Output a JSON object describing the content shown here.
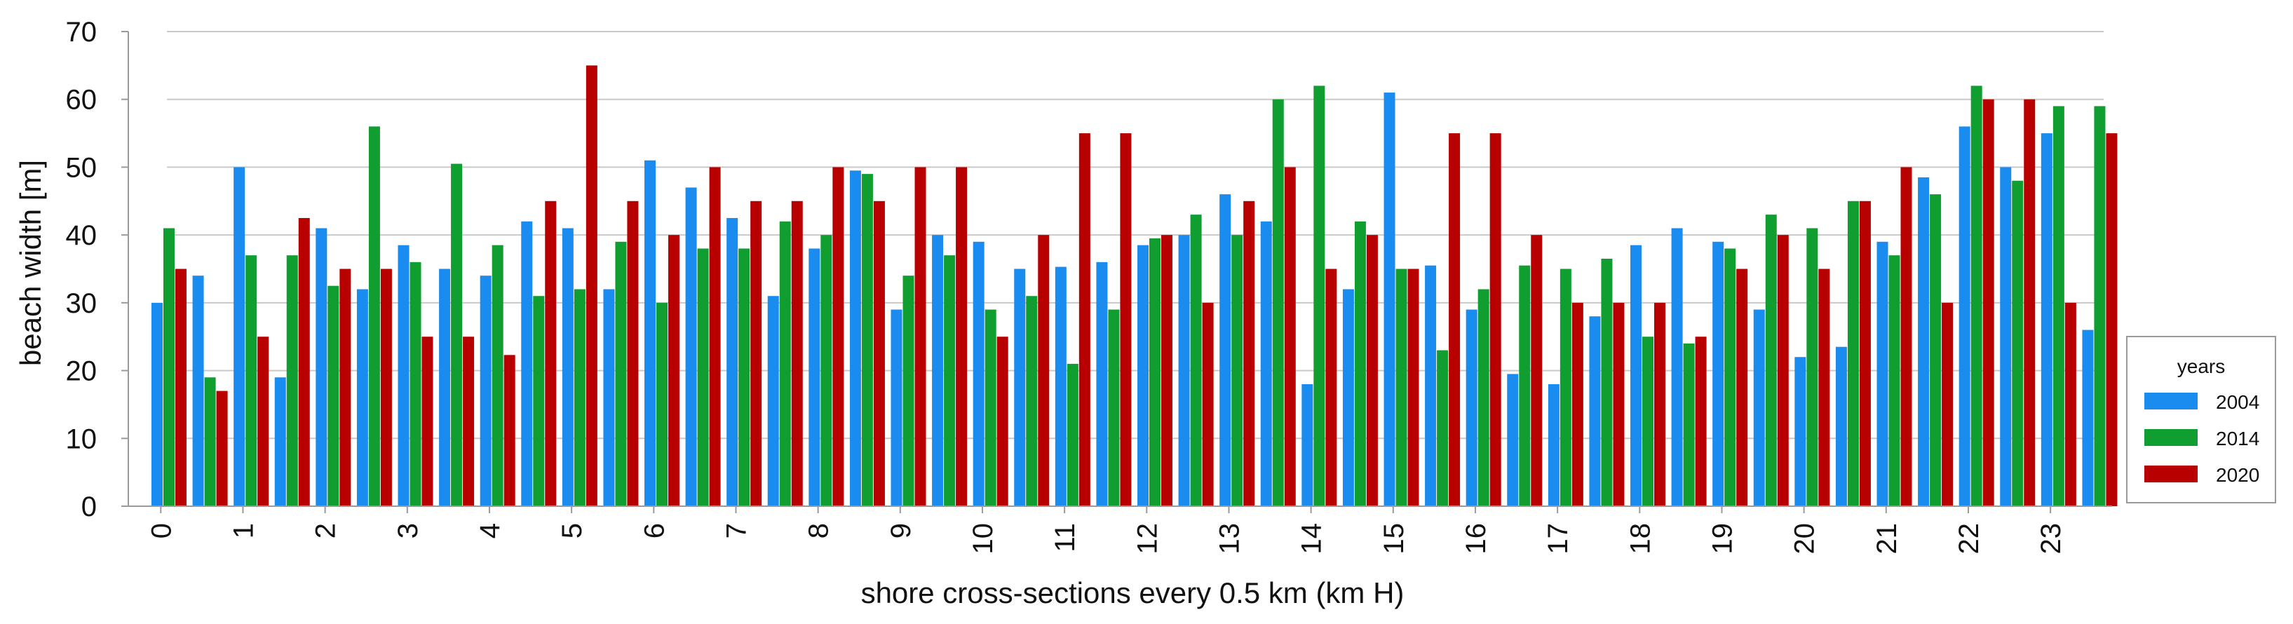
{
  "chart_data": {
    "type": "bar",
    "title": "",
    "xlabel": "shore cross-sections every 0.5 km (km H)",
    "ylabel": "beach width [m]",
    "ylim": [
      0,
      70
    ],
    "yticks": [
      0,
      10,
      20,
      30,
      40,
      50,
      60,
      70
    ],
    "grid": true,
    "legend": {
      "title": "years",
      "position": "right-bottom"
    },
    "xtick_labels": [
      "0",
      "1",
      "2",
      "3",
      "4",
      "5",
      "6",
      "7",
      "8",
      "9",
      "10",
      "11",
      "12",
      "13",
      "14",
      "15",
      "16",
      "17",
      "18",
      "19",
      "20",
      "21",
      "22",
      "23"
    ],
    "categories": [
      "0",
      "0.5",
      "1",
      "1.5",
      "2",
      "2.5",
      "3",
      "3.5",
      "4",
      "4.5",
      "5",
      "5.5",
      "6",
      "6.5",
      "7",
      "7.5",
      "8",
      "8.5",
      "9",
      "9.5",
      "10",
      "10.5",
      "11",
      "11.5",
      "12",
      "12.5",
      "13",
      "13.5",
      "14",
      "14.5",
      "15",
      "15.5",
      "16",
      "16.5",
      "17",
      "17.5",
      "18",
      "18.5",
      "19",
      "19.5",
      "20",
      "20.5",
      "21",
      "21.5",
      "22",
      "22.5",
      "23",
      "23.5"
    ],
    "series": [
      {
        "name": "2004",
        "color": "#1a8cf0",
        "values": [
          30,
          34,
          50,
          19,
          41,
          32,
          38.5,
          35,
          34,
          42,
          41,
          32,
          51,
          47,
          42.5,
          31,
          38,
          49.5,
          29,
          40,
          39,
          35,
          35.3,
          36,
          38.5,
          40,
          46,
          42,
          18,
          32,
          61,
          35.5,
          29,
          19.5,
          18,
          28,
          38.5,
          41,
          39,
          29,
          22,
          23.5,
          39,
          48.5,
          56,
          50,
          55,
          26
        ]
      },
      {
        "name": "2014",
        "color": "#0f9e2f",
        "values": [
          41,
          19,
          37,
          37,
          32.5,
          56,
          36,
          50.5,
          38.5,
          31,
          32,
          39,
          30,
          38,
          38,
          42,
          40,
          49,
          34,
          37,
          29,
          31,
          21,
          29,
          39.5,
          43,
          40,
          60,
          62,
          42,
          35,
          23,
          32,
          35.5,
          35,
          36.5,
          25,
          24,
          38,
          43,
          41,
          45,
          37,
          46,
          62,
          48,
          59,
          59
        ]
      },
      {
        "name": "2020",
        "color": "#b80000",
        "values": [
          35,
          17,
          25,
          42.5,
          35,
          35,
          25,
          25,
          22.3,
          45,
          65,
          45,
          40,
          50,
          45,
          45,
          50,
          45,
          50,
          50,
          25,
          40,
          55,
          55,
          40,
          30,
          45,
          50,
          35,
          40,
          35,
          55,
          55,
          40,
          30,
          30,
          30,
          25,
          35,
          40,
          35,
          45,
          50,
          30,
          60,
          60,
          30,
          55
        ]
      }
    ]
  }
}
